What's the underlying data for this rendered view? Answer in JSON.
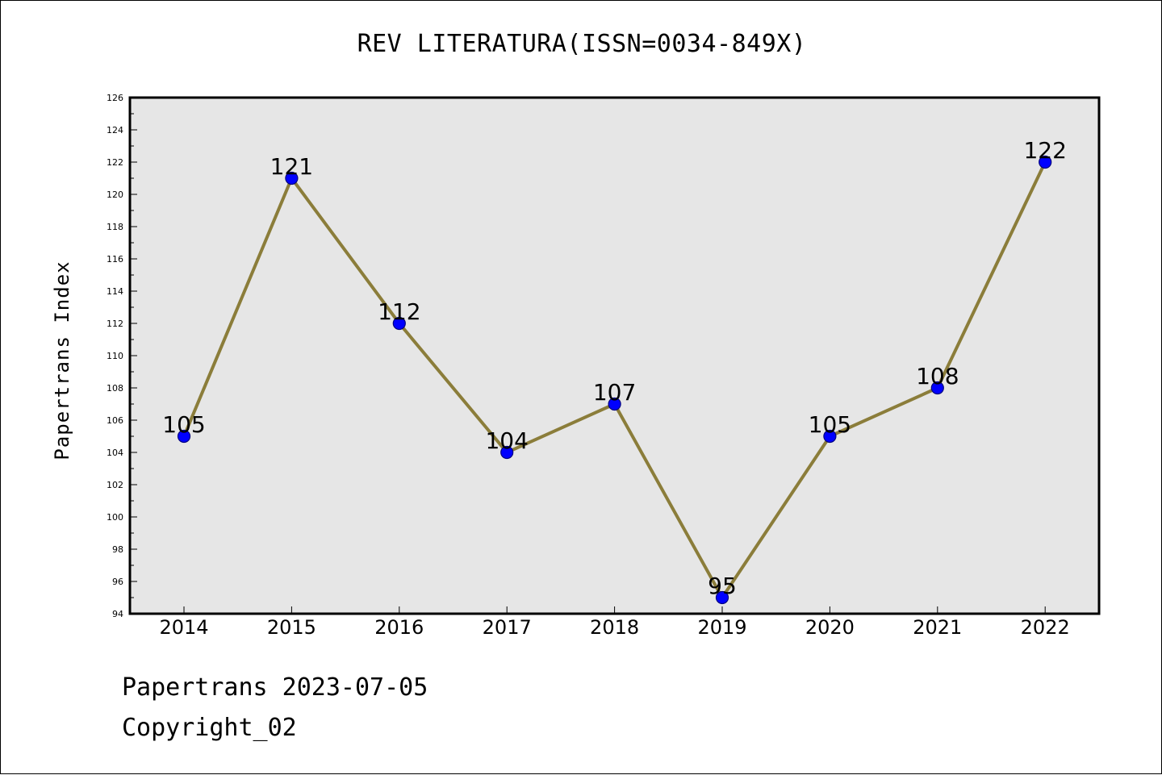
{
  "chart_data": {
    "type": "line",
    "title": "REV LITERATURA(ISSN=0034-849X)",
    "xlabel": "",
    "ylabel": "Papertrans Index",
    "categories": [
      "2014",
      "2015",
      "2016",
      "2017",
      "2018",
      "2019",
      "2020",
      "2021",
      "2022"
    ],
    "series": [
      {
        "values": [
          105,
          121,
          112,
          104,
          107,
          95,
          105,
          108,
          122
        ]
      }
    ],
    "ylim": [
      94,
      126
    ],
    "yticks": [
      94,
      96,
      98,
      100,
      102,
      104,
      106,
      108,
      110,
      112,
      114,
      116,
      118,
      120,
      122,
      124,
      126
    ],
    "data_labels": true,
    "grid": false,
    "colors": {
      "line": "#8B7D3A",
      "marker_fill": "#0000FF",
      "marker_edge": "#000080",
      "plot_background": "#E6E6E6"
    }
  },
  "footer": {
    "date_text": "Papertrans 2023-07-05",
    "copyright_text": "Copyright_02"
  }
}
